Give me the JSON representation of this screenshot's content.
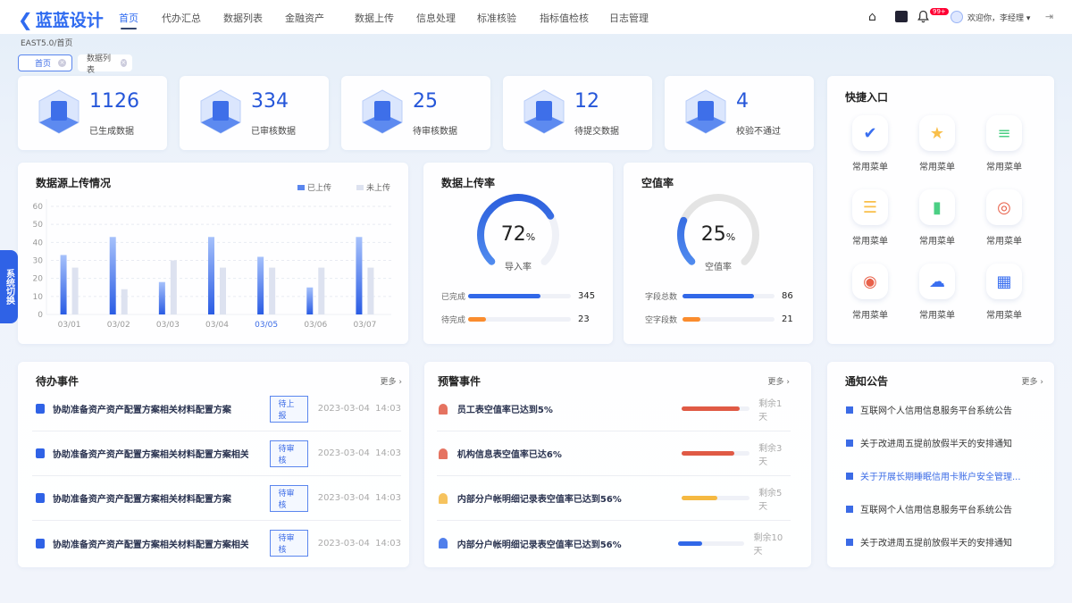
{
  "header": {
    "logo": "蓝蓝设计",
    "nav": [
      "首页",
      "代办汇总",
      "数据列表",
      "金融资产",
      "数据上传",
      "信息处理",
      "标准核验",
      "指标值检核",
      "日志管理"
    ],
    "active_nav": "首页",
    "notif_badge": "99+",
    "user": "欢迎你，李经理",
    "icons": [
      "home-icon",
      "translate-icon",
      "bell-icon",
      "avatar",
      "logout-icon"
    ]
  },
  "breadcrumb": "EAST5.0/首页",
  "tabs": [
    "首页",
    "数据列表"
  ],
  "side_tab": "系统切换",
  "stats": [
    {
      "value": "1126",
      "label": "已生成数据"
    },
    {
      "value": "334",
      "label": "已审核数据"
    },
    {
      "value": "25",
      "label": "待审核数据"
    },
    {
      "value": "12",
      "label": "待提交数据"
    },
    {
      "value": "4",
      "label": "校验不通过"
    }
  ],
  "quick": {
    "title": "快捷入口",
    "items": [
      {
        "label": "常用菜单",
        "icon": "shield-check-icon",
        "color": "#3a6ff0"
      },
      {
        "label": "常用菜单",
        "icon": "folder-star-icon",
        "color": "#f9bf4a"
      },
      {
        "label": "常用菜单",
        "icon": "document-icon",
        "color": "#4bcf84"
      },
      {
        "label": "常用菜单",
        "icon": "database-icon",
        "color": "#f9bf4a"
      },
      {
        "label": "常用菜单",
        "icon": "bar-chart-icon",
        "color": "#4bcf84"
      },
      {
        "label": "常用菜单",
        "icon": "target-icon",
        "color": "#e8614a"
      },
      {
        "label": "常用菜单",
        "icon": "money-bag-icon",
        "color": "#e8614a"
      },
      {
        "label": "常用菜单",
        "icon": "cloud-download-icon",
        "color": "#3a6ff0"
      },
      {
        "label": "常用菜单",
        "icon": "apps-icon",
        "color": "#3a6ff0"
      }
    ]
  },
  "chart_data": {
    "type": "bar",
    "title": "数据源上传情况",
    "categories": [
      "03/01",
      "03/02",
      "03/03",
      "03/04",
      "03/05",
      "03/06",
      "03/07"
    ],
    "highlight_category": "03/05",
    "series": [
      {
        "name": "已上传",
        "values": [
          33,
          43,
          18,
          43,
          32,
          15,
          43
        ],
        "color": "#2f62e6"
      },
      {
        "name": "未上传",
        "values": [
          26,
          14,
          30,
          26,
          26,
          26,
          26
        ],
        "color": "#dde2f0"
      }
    ],
    "ylim": [
      0,
      60
    ],
    "yticks": [
      0,
      10,
      20,
      30,
      40,
      50,
      60
    ],
    "grid": true,
    "legend": "top-right"
  },
  "upload_rate": {
    "title": "数据上传率",
    "value": 72,
    "unit": "%",
    "label": "导入率",
    "bars": [
      {
        "label": "已完成",
        "value": "345",
        "fill": 0.7,
        "color": "#3168e8"
      },
      {
        "label": "待完成",
        "value": "23",
        "fill": 0.17,
        "color": "#fa8c2e"
      }
    ]
  },
  "null_rate": {
    "title": "空值率",
    "value": 25,
    "unit": "%",
    "label": "空值率",
    "bars": [
      {
        "label": "字段总数",
        "value": "86",
        "fill": 0.78,
        "color": "#3168e8"
      },
      {
        "label": "空字段数",
        "value": "21",
        "fill": 0.19,
        "color": "#fa8c2e"
      }
    ]
  },
  "todo": {
    "title": "待办事件",
    "more": "更多 ›",
    "items": [
      {
        "text": "协助准备资产资产配置方案相关材料配置方案",
        "status": "待上报",
        "time": "2023-03-04  14:03"
      },
      {
        "text": "协助准备资产资产配置方案相关材料配置方案相关...",
        "status": "待审核",
        "time": "2023-03-04  14:03"
      },
      {
        "text": "协助准备资产资产配置方案相关材料配置方案",
        "status": "待审核",
        "time": "2023-03-04  14:03"
      },
      {
        "text": "协助准备资产资产配置方案相关材料配置方案相关...",
        "status": "待审核",
        "time": "2023-03-04  14:03"
      }
    ]
  },
  "alerts": {
    "title": "预警事件",
    "more": "更多 ›",
    "items": [
      {
        "text": "员工表空值率已达到5%",
        "remain": "剩余1天",
        "progress": 0.86,
        "color": "#e05a45"
      },
      {
        "text": "机构信息表空值率已达6%",
        "remain": "剩余3天",
        "progress": 0.78,
        "color": "#e05a45"
      },
      {
        "text": "内部分户帐明细记录表空值率已达到56%",
        "remain": "剩余5天",
        "progress": 0.53,
        "color": "#f5b942"
      },
      {
        "text": "内部分户帐明细记录表空值率已达到56%",
        "remain": "剩余10天",
        "progress": 0.36,
        "color": "#3168e8"
      }
    ]
  },
  "notices": {
    "title": "通知公告",
    "more": "更多 ›",
    "items": [
      "互联网个人信用信息服务平台系统公告",
      "关于改进周五提前放假半天的安排通知",
      "关于开展长期睡眠信用卡账户安全管理...",
      "互联网个人信用信息服务平台系统公告",
      "关于改进周五提前放假半天的安排通知"
    ],
    "highlight_index": 2
  }
}
